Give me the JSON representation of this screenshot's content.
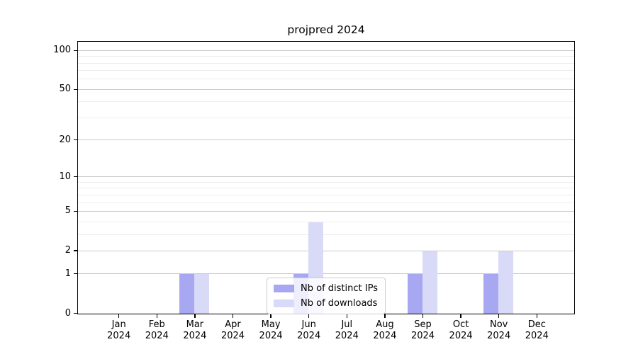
{
  "chart_data": {
    "type": "bar",
    "title": "projpred 2024",
    "categories": [
      "Jan",
      "Feb",
      "Mar",
      "Apr",
      "May",
      "Jun",
      "Jul",
      "Aug",
      "Sep",
      "Oct",
      "Nov",
      "Dec"
    ],
    "category_year": "2024",
    "series": [
      {
        "name": "Nb of distinct IPs",
        "color": "#a8a8f2",
        "values": [
          0,
          0,
          1,
          0,
          0,
          1,
          0,
          0,
          1,
          0,
          1,
          0
        ]
      },
      {
        "name": "Nb of downloads",
        "color": "#d9d9f8",
        "values": [
          0,
          0,
          1,
          0,
          0,
          4,
          0,
          0,
          2,
          0,
          2,
          0
        ]
      }
    ],
    "xlabel": "",
    "ylabel": "",
    "y_scale": "log1p",
    "ylim": [
      0,
      116
    ],
    "y_ticks_major": [
      0,
      1,
      2,
      5,
      10,
      20,
      50,
      100
    ],
    "y_ticks_minor": [
      3,
      4,
      6,
      7,
      8,
      9,
      30,
      40,
      60,
      70,
      80,
      90
    ],
    "grid": true,
    "legend_position": "lower center",
    "colors": {
      "major_grid": "#c9c9c9",
      "minor_grid": "#ededed",
      "spine": "#000000"
    }
  }
}
